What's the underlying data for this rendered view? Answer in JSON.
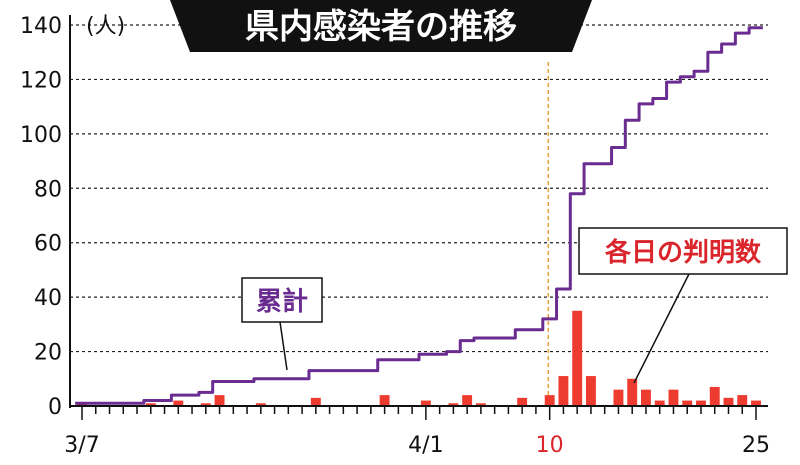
{
  "chart_data": {
    "type": "bar+line",
    "title": "県内感染者の推移",
    "unit_label": "(人)",
    "ylim": [
      0,
      140
    ],
    "y_ticks": [
      0,
      20,
      40,
      60,
      80,
      100,
      120,
      140
    ],
    "grid": "dashed-horizontal",
    "x_start": "3/7",
    "x_end": "4/25",
    "x_tick_labels": [
      {
        "day_index": 0,
        "label": "3/7",
        "color": "#111111"
      },
      {
        "day_index": 25,
        "label": "4/1",
        "color": "#111111"
      },
      {
        "day_index": 34,
        "label": "10",
        "color": "#d9252b"
      },
      {
        "day_index": 49,
        "label": "25",
        "color": "#111111"
      }
    ],
    "highlight_day_index": 34,
    "series": [
      {
        "name": "各日の判明数",
        "kind": "bar",
        "color": "#ee3b2f",
        "label_color": "#d9252b",
        "values": [
          1,
          0,
          0,
          0,
          0,
          1,
          0,
          2,
          0,
          1,
          4,
          0,
          0,
          1,
          0,
          0,
          0,
          3,
          0,
          0,
          0,
          0,
          4,
          0,
          0,
          2,
          0,
          1,
          4,
          1,
          0,
          0,
          3,
          0,
          4,
          11,
          35,
          11,
          0,
          6,
          10,
          6,
          2,
          6,
          2,
          2,
          7,
          3,
          4,
          2
        ]
      },
      {
        "name": "累計",
        "kind": "line",
        "color": "#6a2c91",
        "values": [
          1,
          1,
          1,
          1,
          1,
          2,
          2,
          4,
          4,
          5,
          9,
          9,
          9,
          10,
          10,
          10,
          10,
          13,
          13,
          13,
          13,
          13,
          17,
          17,
          17,
          19,
          19,
          20,
          24,
          25,
          25,
          25,
          28,
          28,
          32,
          43,
          78,
          89,
          89,
          95,
          105,
          111,
          113,
          119,
          121,
          123,
          130,
          133,
          137,
          139
        ]
      }
    ],
    "annotations": {
      "cumulative_label": "累計",
      "daily_label": "各日の判明数"
    },
    "colors": {
      "accent_line": "#6a2c91",
      "bar": "#ee3b2f",
      "highlight": "#e8a23a",
      "title_bg": "#111111",
      "title_text": "#ffffff"
    }
  }
}
